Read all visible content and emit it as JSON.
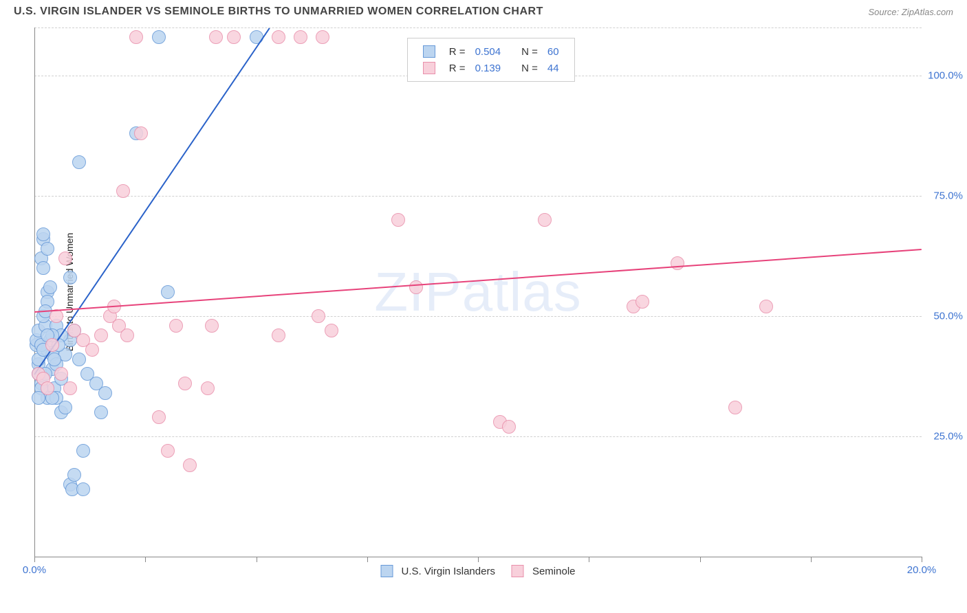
{
  "title": "U.S. VIRGIN ISLANDER VS SEMINOLE BIRTHS TO UNMARRIED WOMEN CORRELATION CHART",
  "source": "Source: ZipAtlas.com",
  "ylabel": "Births to Unmarried Women",
  "watermark": "ZIPatlas",
  "chart": {
    "type": "scatter",
    "xlim": [
      0,
      20
    ],
    "ylim": [
      0,
      110
    ],
    "x_ticks": [
      0,
      2.5,
      5,
      7.5,
      10,
      12.5,
      15,
      17.5,
      20
    ],
    "x_tick_labels": {
      "0": "0.0%",
      "20": "20.0%"
    },
    "y_gridlines": [
      25,
      50,
      75,
      100,
      110
    ],
    "y_tick_labels": {
      "25": "25.0%",
      "50": "50.0%",
      "75": "75.0%",
      "100": "100.0%"
    },
    "marker_radius": 10,
    "grid_color": "#d0d0d0",
    "axis_color": "#888888",
    "background_color": "#ffffff",
    "value_color": "#3e74d1"
  },
  "series": [
    {
      "name": "U.S. Virgin Islanders",
      "fill": "#bcd5f0",
      "stroke": "#6699d8",
      "line_color": "#2a62c9",
      "R": "0.504",
      "N": "60",
      "trend": {
        "x1": 0,
        "y1": 38,
        "x2": 5.3,
        "y2": 110
      },
      "trend_dashed_from_y": 100,
      "points": [
        [
          0.05,
          44
        ],
        [
          0.05,
          45
        ],
        [
          0.1,
          47
        ],
        [
          0.1,
          40
        ],
        [
          0.15,
          36
        ],
        [
          0.2,
          66
        ],
        [
          0.15,
          62
        ],
        [
          0.2,
          67
        ],
        [
          0.2,
          60
        ],
        [
          0.3,
          55
        ],
        [
          0.25,
          48
        ],
        [
          0.3,
          43
        ],
        [
          0.35,
          45
        ],
        [
          0.4,
          42
        ],
        [
          0.4,
          39
        ],
        [
          0.45,
          35
        ],
        [
          0.3,
          33
        ],
        [
          0.5,
          33
        ],
        [
          0.6,
          30
        ],
        [
          0.7,
          31
        ],
        [
          0.8,
          15
        ],
        [
          0.85,
          14
        ],
        [
          1.1,
          14
        ],
        [
          0.9,
          17
        ],
        [
          1.1,
          22
        ],
        [
          0.5,
          40
        ],
        [
          0.7,
          42
        ],
        [
          0.8,
          45
        ],
        [
          0.9,
          47
        ],
        [
          1.0,
          41
        ],
        [
          1.2,
          38
        ],
        [
          1.4,
          36
        ],
        [
          1.6,
          34
        ],
        [
          1.0,
          82
        ],
        [
          2.3,
          88
        ],
        [
          3.0,
          55
        ],
        [
          0.2,
          50
        ],
        [
          0.3,
          53
        ],
        [
          0.35,
          56
        ],
        [
          0.5,
          48
        ],
        [
          0.6,
          46
        ],
        [
          0.1,
          41
        ],
        [
          0.15,
          44
        ],
        [
          0.1,
          38
        ],
        [
          0.15,
          35
        ],
        [
          0.1,
          33
        ],
        [
          0.45,
          41
        ],
        [
          0.55,
          44
        ],
        [
          0.4,
          46
        ],
        [
          0.25,
          38
        ],
        [
          0.25,
          51
        ],
        [
          0.3,
          64
        ],
        [
          0.8,
          58
        ],
        [
          0.2,
          43
        ],
        [
          0.3,
          46
        ],
        [
          0.6,
          37
        ],
        [
          1.5,
          30
        ],
        [
          0.4,
          33
        ],
        [
          2.8,
          108
        ],
        [
          5.0,
          108
        ]
      ]
    },
    {
      "name": "Seminole",
      "fill": "#f8d0db",
      "stroke": "#e98fab",
      "line_color": "#e7427a",
      "R": "0.139",
      "N": "44",
      "trend": {
        "x1": 0,
        "y1": 51,
        "x2": 20,
        "y2": 64
      },
      "points": [
        [
          0.1,
          38
        ],
        [
          0.2,
          37
        ],
        [
          0.3,
          35
        ],
        [
          0.6,
          38
        ],
        [
          0.5,
          50
        ],
        [
          0.7,
          62
        ],
        [
          0.9,
          47
        ],
        [
          1.1,
          45
        ],
        [
          1.3,
          43
        ],
        [
          1.5,
          46
        ],
        [
          1.7,
          50
        ],
        [
          1.9,
          48
        ],
        [
          2.1,
          46
        ],
        [
          2.3,
          108
        ],
        [
          2.0,
          76
        ],
        [
          2.4,
          88
        ],
        [
          2.8,
          29
        ],
        [
          3.0,
          22
        ],
        [
          3.2,
          48
        ],
        [
          3.4,
          36
        ],
        [
          3.5,
          19
        ],
        [
          3.9,
          35
        ],
        [
          4.0,
          48
        ],
        [
          4.1,
          108
        ],
        [
          4.5,
          108
        ],
        [
          5.5,
          108
        ],
        [
          6.0,
          108
        ],
        [
          6.4,
          50
        ],
        [
          6.7,
          47
        ],
        [
          8.2,
          70
        ],
        [
          8.6,
          56
        ],
        [
          10.5,
          28
        ],
        [
          10.7,
          27
        ],
        [
          11.5,
          70
        ],
        [
          13.5,
          52
        ],
        [
          13.7,
          53
        ],
        [
          14.5,
          61
        ],
        [
          15.8,
          31
        ],
        [
          16.5,
          52
        ],
        [
          6.5,
          108
        ],
        [
          0.4,
          44
        ],
        [
          0.8,
          35
        ],
        [
          1.8,
          52
        ],
        [
          5.5,
          46
        ]
      ]
    }
  ],
  "legend_top_pos": {
    "left_pct": 42,
    "top_pct": 2
  },
  "legend_top_labels": {
    "R": "R =",
    "N": "N ="
  }
}
